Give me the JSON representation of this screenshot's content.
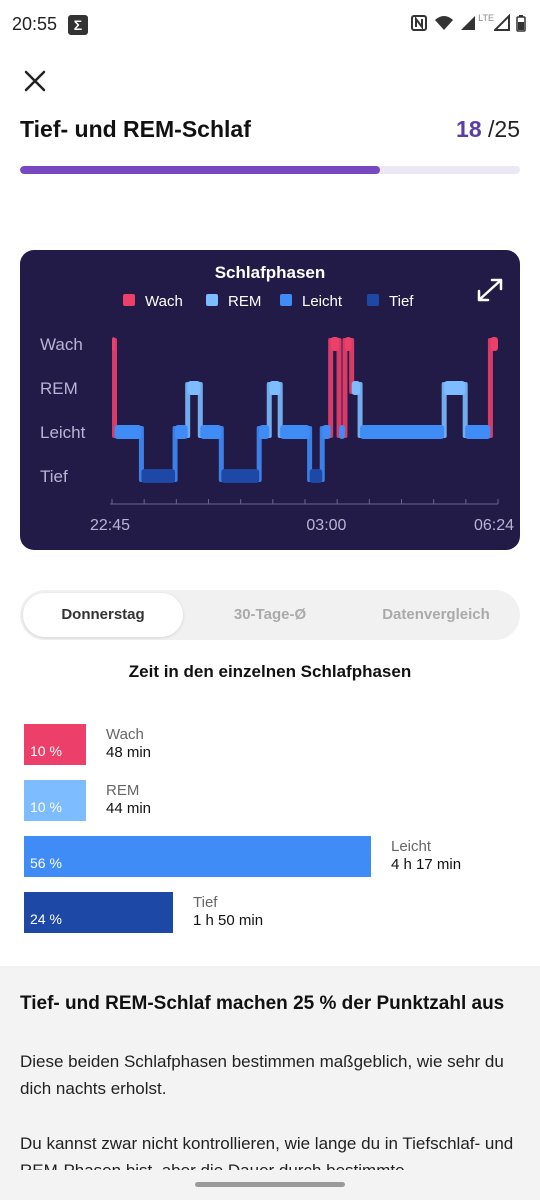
{
  "status_bar": {
    "time": "20:55",
    "lte": "LTE"
  },
  "header": {
    "title": "Tief- und REM-Schlaf",
    "score_value": "18",
    "score_total": "/25",
    "progress": 0.72
  },
  "chart_data": {
    "type": "area",
    "title": "Schlafphasen",
    "legend": [
      {
        "name": "Wach",
        "color": "#ec3f6a"
      },
      {
        "name": "REM",
        "color": "#7cbcff"
      },
      {
        "name": "Leicht",
        "color": "#3f8cf7"
      },
      {
        "name": "Tief",
        "color": "#1d48a6"
      }
    ],
    "y_categories": [
      "Wach",
      "REM",
      "Leicht",
      "Tief"
    ],
    "x_ticks": [
      "22:45",
      "03:00",
      "06:24"
    ],
    "x_range": [
      "22:45",
      "06:24"
    ],
    "segments": [
      {
        "stage": "Wach",
        "start": "22:45",
        "end": "22:48"
      },
      {
        "stage": "Leicht",
        "start": "22:48",
        "end": "23:20"
      },
      {
        "stage": "Tief",
        "start": "23:20",
        "end": "00:00"
      },
      {
        "stage": "Leicht",
        "start": "00:00",
        "end": "00:15"
      },
      {
        "stage": "REM",
        "start": "00:15",
        "end": "00:30"
      },
      {
        "stage": "Leicht",
        "start": "00:30",
        "end": "00:55"
      },
      {
        "stage": "Tief",
        "start": "00:55",
        "end": "01:40"
      },
      {
        "stage": "Leicht",
        "start": "01:40",
        "end": "01:52"
      },
      {
        "stage": "REM",
        "start": "01:52",
        "end": "02:05"
      },
      {
        "stage": "Leicht",
        "start": "02:05",
        "end": "02:40"
      },
      {
        "stage": "Tief",
        "start": "02:40",
        "end": "02:55"
      },
      {
        "stage": "Leicht",
        "start": "02:55",
        "end": "03:05"
      },
      {
        "stage": "Wach",
        "start": "03:05",
        "end": "03:15"
      },
      {
        "stage": "Leicht",
        "start": "03:15",
        "end": "03:22"
      },
      {
        "stage": "Wach",
        "start": "03:22",
        "end": "03:30"
      },
      {
        "stage": "REM",
        "start": "03:30",
        "end": "03:40"
      },
      {
        "stage": "Leicht",
        "start": "03:40",
        "end": "05:20"
      },
      {
        "stage": "REM",
        "start": "05:20",
        "end": "05:45"
      },
      {
        "stage": "Leicht",
        "start": "05:45",
        "end": "06:15"
      },
      {
        "stage": "Wach",
        "start": "06:15",
        "end": "06:24"
      }
    ]
  },
  "tabs": [
    {
      "label": "Donnerstag",
      "active": true
    },
    {
      "label": "30-Tage-Ø",
      "active": false
    },
    {
      "label": "Datenvergleich",
      "active": false
    }
  ],
  "stages_section": {
    "title": "Zeit in den einzelnen Schlafphasen",
    "items": [
      {
        "name": "Wach",
        "percent_label": "10 %",
        "percent": 10,
        "duration": "48 min",
        "color": "#ec3f6a"
      },
      {
        "name": "REM",
        "percent_label": "10 %",
        "percent": 10,
        "duration": "44 min",
        "color": "#7cbcff"
      },
      {
        "name": "Leicht",
        "percent_label": "56 %",
        "percent": 56,
        "duration": "4 h 17 min",
        "color": "#3f8cf7"
      },
      {
        "name": "Tief",
        "percent_label": "24 %",
        "percent": 24,
        "duration": "1 h 50 min",
        "color": "#1d48a6"
      }
    ]
  },
  "info": {
    "title": "Tief- und REM-Schlaf machen 25 % der Punktzahl aus",
    "p1": "Diese beiden Schlafphasen bestimmen maßgeblich, wie sehr du dich nachts erholst.",
    "p2": "Du kannst zwar nicht kontrollieren, wie lange du in Tiefschlaf- und REM-Phasen bist, aber die Dauer durch bestimmte"
  }
}
